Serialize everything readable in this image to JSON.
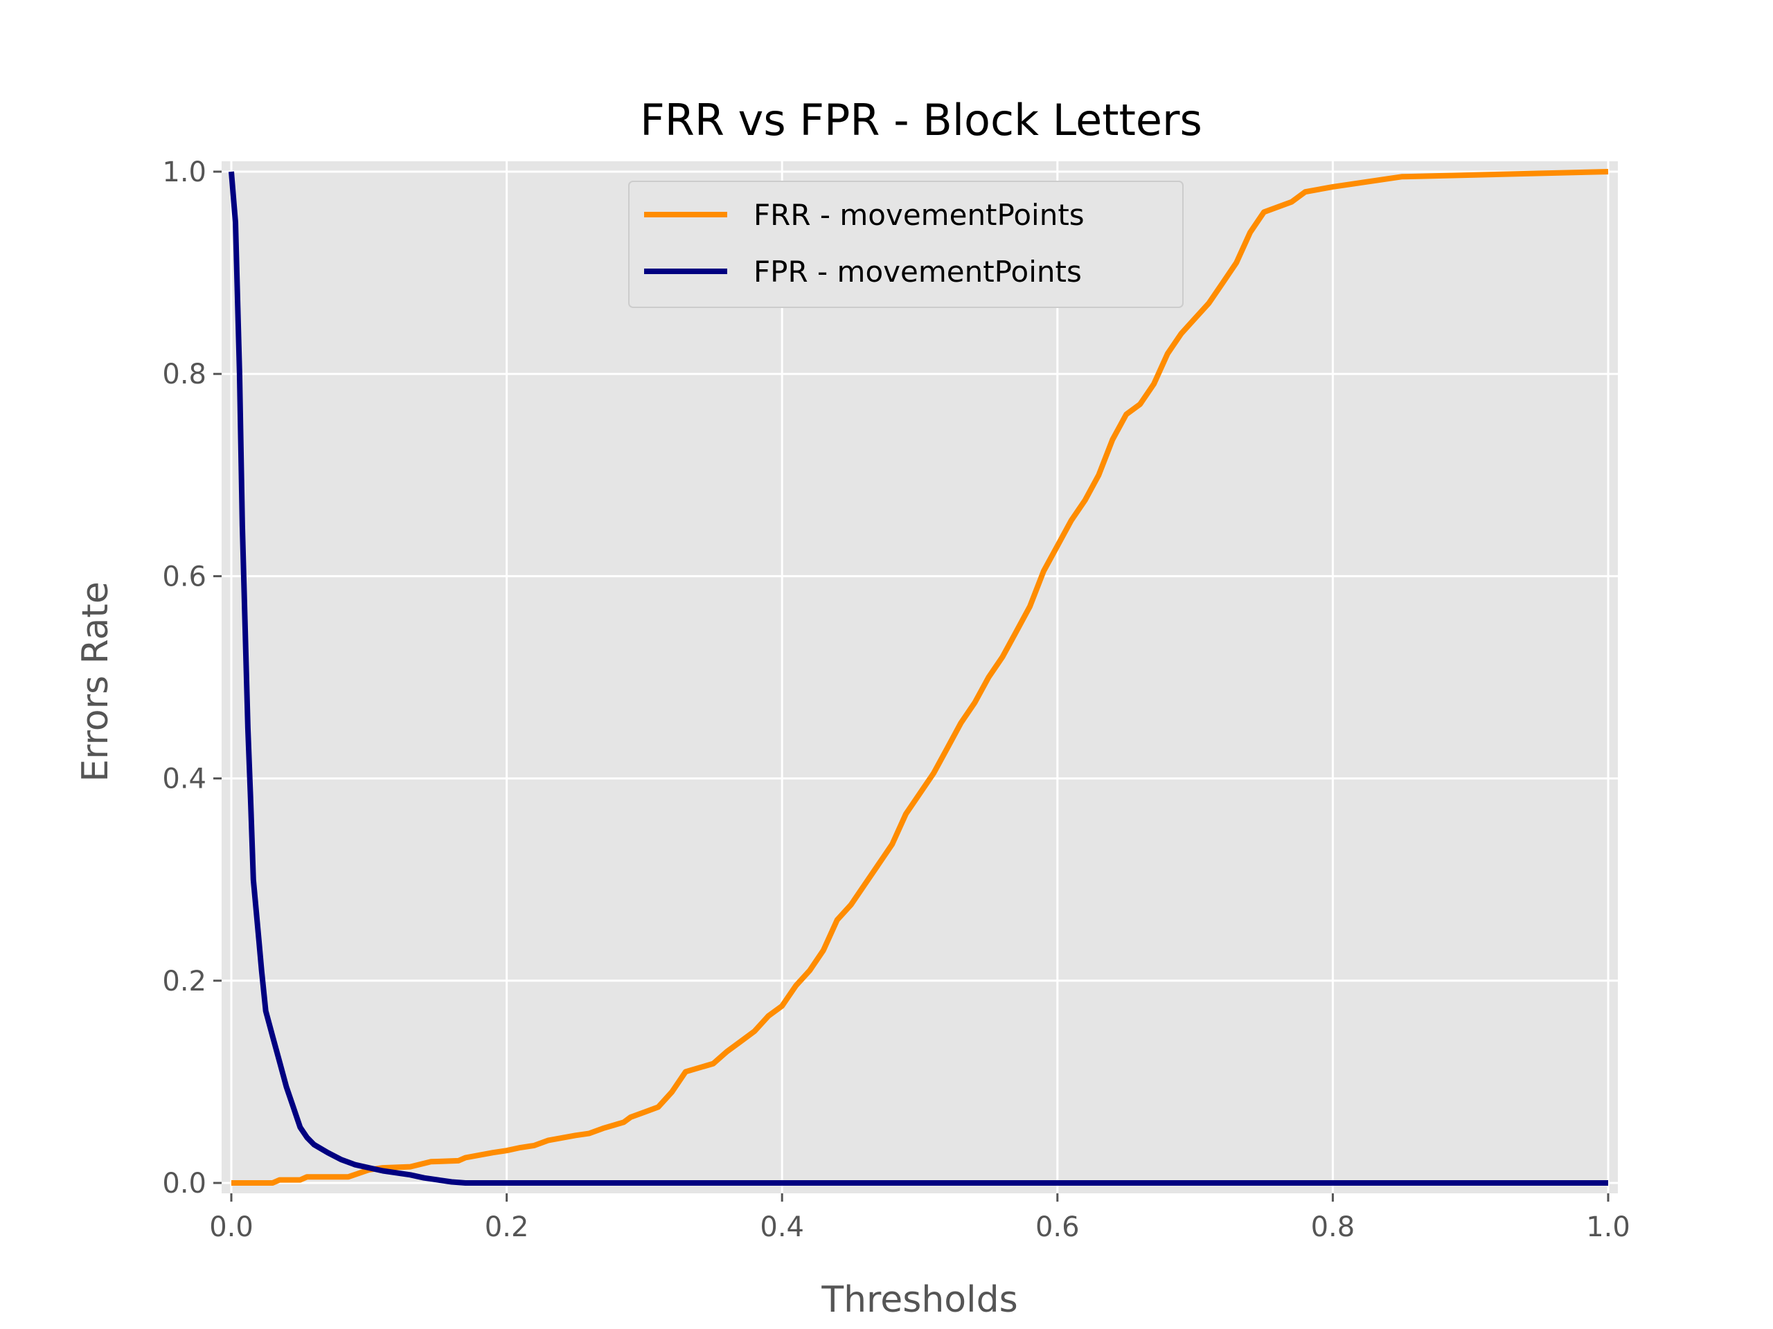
{
  "chart_data": {
    "type": "line",
    "title": "FRR vs FPR - Block Letters",
    "xlabel": "Thresholds",
    "ylabel": "Errors Rate",
    "xlim": [
      0,
      1
    ],
    "ylim": [
      0,
      1
    ],
    "xticks": [
      "0.0",
      "0.2",
      "0.4",
      "0.6",
      "0.8",
      "1.0"
    ],
    "yticks": [
      "0.0",
      "0.2",
      "0.4",
      "0.6",
      "0.8",
      "1.0"
    ],
    "grid": true,
    "legend_position": "top-center",
    "background_color": "#e5e5e5",
    "series": [
      {
        "name": "FRR - movementPoints",
        "color": "#ff8c00",
        "points": [
          [
            0,
            0
          ],
          [
            0.03,
            0
          ],
          [
            0.035,
            0.003
          ],
          [
            0.05,
            0.003
          ],
          [
            0.055,
            0.006
          ],
          [
            0.085,
            0.006
          ],
          [
            0.1,
            0.013
          ],
          [
            0.11,
            0.015
          ],
          [
            0.13,
            0.016
          ],
          [
            0.145,
            0.021
          ],
          [
            0.165,
            0.022
          ],
          [
            0.17,
            0.025
          ],
          [
            0.19,
            0.03
          ],
          [
            0.2,
            0.032
          ],
          [
            0.21,
            0.035
          ],
          [
            0.22,
            0.037
          ],
          [
            0.23,
            0.042
          ],
          [
            0.25,
            0.047
          ],
          [
            0.26,
            0.049
          ],
          [
            0.27,
            0.054
          ],
          [
            0.285,
            0.06
          ],
          [
            0.29,
            0.065
          ],
          [
            0.3,
            0.07
          ],
          [
            0.31,
            0.075
          ],
          [
            0.32,
            0.09
          ],
          [
            0.33,
            0.11
          ],
          [
            0.35,
            0.118
          ],
          [
            0.36,
            0.13
          ],
          [
            0.37,
            0.14
          ],
          [
            0.38,
            0.15
          ],
          [
            0.39,
            0.165
          ],
          [
            0.4,
            0.175
          ],
          [
            0.41,
            0.195
          ],
          [
            0.42,
            0.21
          ],
          [
            0.43,
            0.23
          ],
          [
            0.44,
            0.26
          ],
          [
            0.45,
            0.275
          ],
          [
            0.46,
            0.295
          ],
          [
            0.47,
            0.315
          ],
          [
            0.48,
            0.335
          ],
          [
            0.49,
            0.365
          ],
          [
            0.5,
            0.385
          ],
          [
            0.51,
            0.405
          ],
          [
            0.52,
            0.43
          ],
          [
            0.53,
            0.455
          ],
          [
            0.54,
            0.475
          ],
          [
            0.55,
            0.5
          ],
          [
            0.56,
            0.52
          ],
          [
            0.57,
            0.545
          ],
          [
            0.58,
            0.57
          ],
          [
            0.59,
            0.605
          ],
          [
            0.6,
            0.63
          ],
          [
            0.61,
            0.655
          ],
          [
            0.62,
            0.675
          ],
          [
            0.63,
            0.7
          ],
          [
            0.64,
            0.735
          ],
          [
            0.65,
            0.76
          ],
          [
            0.66,
            0.77
          ],
          [
            0.67,
            0.79
          ],
          [
            0.68,
            0.82
          ],
          [
            0.69,
            0.84
          ],
          [
            0.7,
            0.855
          ],
          [
            0.71,
            0.87
          ],
          [
            0.72,
            0.89
          ],
          [
            0.73,
            0.91
          ],
          [
            0.74,
            0.94
          ],
          [
            0.75,
            0.96
          ],
          [
            0.77,
            0.97
          ],
          [
            0.78,
            0.98
          ],
          [
            0.8,
            0.985
          ],
          [
            0.85,
            0.995
          ],
          [
            1.0,
            1.0
          ]
        ]
      },
      {
        "name": "FPR - movementPoints",
        "color": "#000080",
        "points": [
          [
            0.0,
            1.0
          ],
          [
            0.003,
            0.95
          ],
          [
            0.006,
            0.8
          ],
          [
            0.008,
            0.65
          ],
          [
            0.01,
            0.55
          ],
          [
            0.012,
            0.45
          ],
          [
            0.014,
            0.38
          ],
          [
            0.016,
            0.3
          ],
          [
            0.018,
            0.27
          ],
          [
            0.02,
            0.24
          ],
          [
            0.022,
            0.21
          ],
          [
            0.025,
            0.17
          ],
          [
            0.03,
            0.145
          ],
          [
            0.035,
            0.12
          ],
          [
            0.04,
            0.095
          ],
          [
            0.045,
            0.075
          ],
          [
            0.05,
            0.055
          ],
          [
            0.055,
            0.045
          ],
          [
            0.06,
            0.038
          ],
          [
            0.07,
            0.03
          ],
          [
            0.08,
            0.023
          ],
          [
            0.09,
            0.018
          ],
          [
            0.1,
            0.015
          ],
          [
            0.11,
            0.012
          ],
          [
            0.12,
            0.01
          ],
          [
            0.13,
            0.008
          ],
          [
            0.14,
            0.005
          ],
          [
            0.15,
            0.003
          ],
          [
            0.16,
            0.001
          ],
          [
            0.17,
            0.0
          ],
          [
            1.0,
            0.0
          ]
        ]
      }
    ]
  }
}
